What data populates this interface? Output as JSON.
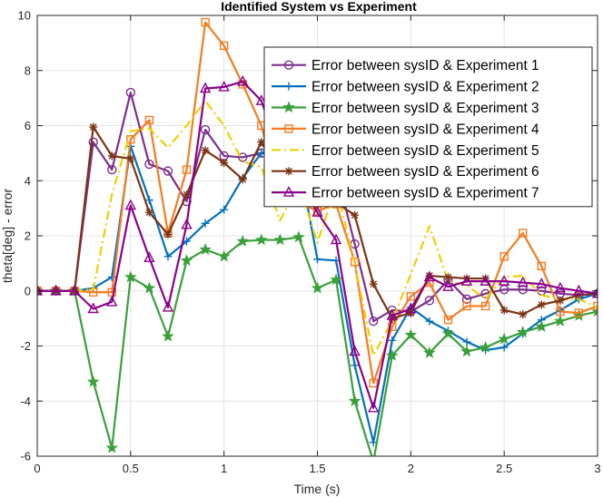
{
  "chart_data": {
    "type": "line",
    "title": "Identified System vs Experiment",
    "xlabel": "Time (s)",
    "ylabel": "theta[deg] - error",
    "xlim": [
      0,
      3
    ],
    "ylim": [
      -6,
      10
    ],
    "xticks": [
      0,
      0.5,
      1,
      1.5,
      2,
      2.5,
      3
    ],
    "xtick_labels": [
      "0",
      "0.5",
      "1",
      "1.5",
      "2",
      "2.5",
      "3"
    ],
    "yticks": [
      -6,
      -4,
      -2,
      0,
      2,
      4,
      6,
      8,
      10
    ],
    "ytick_labels": [
      "-6",
      "-4",
      "-2",
      "0",
      "2",
      "4",
      "6",
      "8",
      "10"
    ],
    "grid": true,
    "legend_position": "top-right",
    "x": [
      0,
      0.1,
      0.2,
      0.3,
      0.4,
      0.5,
      0.6,
      0.7,
      0.8,
      0.9,
      1.0,
      1.1,
      1.2,
      1.3,
      1.4,
      1.5,
      1.6,
      1.7,
      1.8,
      1.9,
      2.0,
      2.1,
      2.2,
      2.3,
      2.4,
      2.5,
      2.6,
      2.7,
      2.8,
      2.9,
      3.0
    ],
    "series": [
      {
        "name": "Error between sysID & Experiment 1",
        "color": "#7E2F8E",
        "marker": "circle",
        "dash": "solid",
        "values": [
          0,
          0,
          0,
          5.4,
          4.4,
          7.2,
          4.6,
          4.35,
          3.25,
          5.85,
          4.9,
          4.85,
          5.0,
          4.9,
          4.8,
          4.6,
          4.4,
          1.7,
          -1.1,
          -0.7,
          -0.75,
          -0.35,
          0.4,
          -0.3,
          -0.1,
          0.05,
          0.05,
          0.0,
          -0.1,
          -0.15,
          -0.1
        ]
      },
      {
        "name": "Error between sysID & Experiment 2",
        "color": "#0072BD",
        "marker": "plus",
        "dash": "solid",
        "values": [
          0,
          0,
          0,
          0.1,
          0.5,
          5.25,
          3.3,
          1.25,
          1.8,
          2.45,
          2.95,
          4.1,
          5.0,
          5.3,
          4.8,
          1.15,
          1.1,
          -2.7,
          -5.5,
          -1.8,
          -0.6,
          -1.1,
          -1.45,
          -1.85,
          -2.15,
          -2.05,
          -1.55,
          -1.05,
          -0.7,
          -0.3,
          -0.1
        ]
      },
      {
        "name": "Error between sysID & Experiment 3",
        "color": "#3AA03A",
        "marker": "star",
        "dash": "solid",
        "values": [
          0,
          0,
          0,
          -3.3,
          -5.7,
          0.5,
          0.1,
          -1.65,
          1.1,
          1.5,
          1.25,
          1.8,
          1.85,
          1.85,
          1.95,
          0.1,
          0.4,
          -4.0,
          -6.2,
          -2.35,
          -1.6,
          -2.25,
          -1.55,
          -2.2,
          -2.05,
          -1.75,
          -1.5,
          -1.3,
          -1.1,
          -0.9,
          -0.75
        ]
      },
      {
        "name": "Error between sysID & Experiment 4",
        "color": "#F47C20",
        "marker": "square",
        "dash": "solid",
        "values": [
          0,
          0,
          0,
          -0.05,
          -0.05,
          5.5,
          6.2,
          2.1,
          4.4,
          9.75,
          8.9,
          7.5,
          6.0,
          3.3,
          3.2,
          2.9,
          3.15,
          1.05,
          -3.35,
          -1.3,
          -0.2,
          0.3,
          -1.05,
          -0.55,
          -0.55,
          1.25,
          2.1,
          0.9,
          -0.75,
          -0.8,
          -0.55
        ]
      },
      {
        "name": "Error between sysID & Experiment 5",
        "color": "#EDD100",
        "marker": "none",
        "dash": "dashdot",
        "values": [
          0,
          0,
          0,
          0.05,
          3.5,
          5.8,
          5.9,
          5.2,
          6.0,
          6.9,
          6.0,
          4.7,
          4.5,
          2.55,
          3.9,
          1.75,
          3.8,
          1.0,
          -2.35,
          -1.1,
          0.6,
          2.35,
          0.35,
          0.2,
          -0.3,
          0.5,
          0.55,
          -0.15,
          -0.3,
          -0.3,
          -0.6
        ]
      },
      {
        "name": "Error between sysID & Experiment 6",
        "color": "#7B3413",
        "marker": "asterisk",
        "dash": "solid",
        "values": [
          0,
          0,
          0,
          5.95,
          4.9,
          4.8,
          2.85,
          2.05,
          3.5,
          5.1,
          4.65,
          4.05,
          5.4,
          4.2,
          4.45,
          3.5,
          3.2,
          2.75,
          0.25,
          -1.0,
          -0.8,
          0.55,
          0.5,
          0.45,
          0.45,
          -0.7,
          -0.85,
          -0.5,
          -0.35,
          -0.15,
          -0.1
        ]
      },
      {
        "name": "Error between sysID & Experiment 7",
        "color": "#8B008B",
        "marker": "triangle",
        "dash": "solid",
        "values": [
          0,
          0,
          0,
          -0.65,
          -0.4,
          3.1,
          1.2,
          -0.6,
          2.4,
          7.35,
          7.4,
          7.6,
          6.9,
          5.0,
          3.95,
          2.85,
          1.85,
          -2.2,
          -4.25,
          -0.9,
          -0.65,
          0.5,
          0.15,
          0.35,
          0.35,
          0.35,
          0.3,
          0.25,
          0.1,
          0.0,
          -0.1
        ]
      }
    ]
  }
}
